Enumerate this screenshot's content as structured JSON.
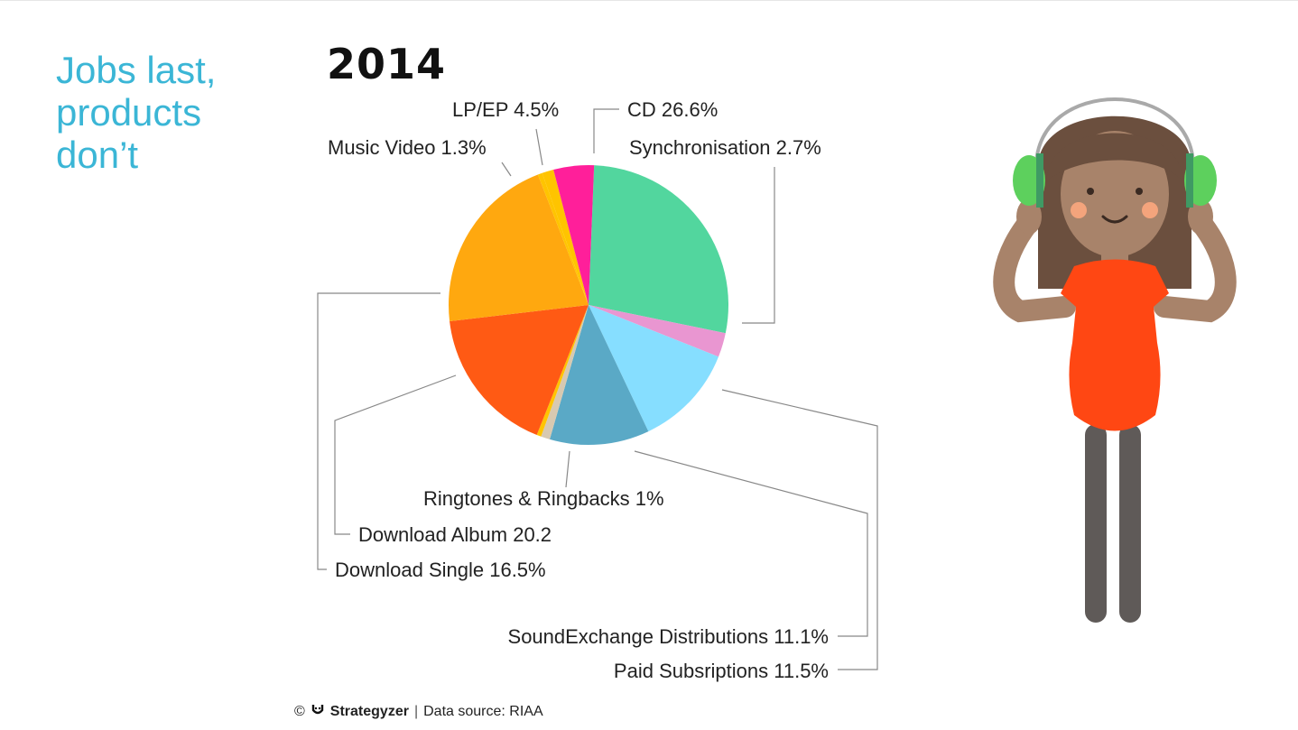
{
  "slide": {
    "headline": "Jobs last,\nproducts\ndon’t",
    "year": "2014",
    "footer": {
      "copyright": "©",
      "brand_icon": "strategyzer-logo-icon",
      "brand": "Strategyzer",
      "separator": "|",
      "source": "Data source: RIAA"
    }
  },
  "chart_data": {
    "type": "pie",
    "title": "2014",
    "slices": [
      {
        "label": "CD 26.6%",
        "value": 26.6,
        "color": "#52d69e"
      },
      {
        "label": "Synchronisation 2.7%",
        "value": 2.7,
        "color": "#e996d1"
      },
      {
        "label": "Paid Subsriptions 11.5%",
        "value": 11.5,
        "color": "#86deff"
      },
      {
        "label": "SoundExchange Distributions 11.1%",
        "value": 11.1,
        "color": "#5aa9c6"
      },
      {
        "label": "Ringtones & Ringbacks 1%",
        "value": 1.0,
        "color": "#d7c9b1"
      },
      {
        "label": "",
        "value": 0.5,
        "color": "#ffc400"
      },
      {
        "label": "Download Single 16.5%",
        "value": 16.5,
        "color": "#ff5a14"
      },
      {
        "label": "Download Album 20.2",
        "value": 20.2,
        "color": "#ffa80f"
      },
      {
        "label": "",
        "value": 0.5,
        "color": "#ffc400"
      },
      {
        "label": "Music Video 1.3%",
        "value": 1.3,
        "color": "#ffc400"
      },
      {
        "label": "LP/EP 4.5%",
        "value": 4.5,
        "color": "#ff1f9a"
      }
    ],
    "leader_color": "#888888"
  },
  "illustration": {
    "hair": "#6b4f3e",
    "skin": "#a8836a",
    "shirt": "#ff4713",
    "headphones": "#5dd05d",
    "legs": "#5f5a58"
  }
}
